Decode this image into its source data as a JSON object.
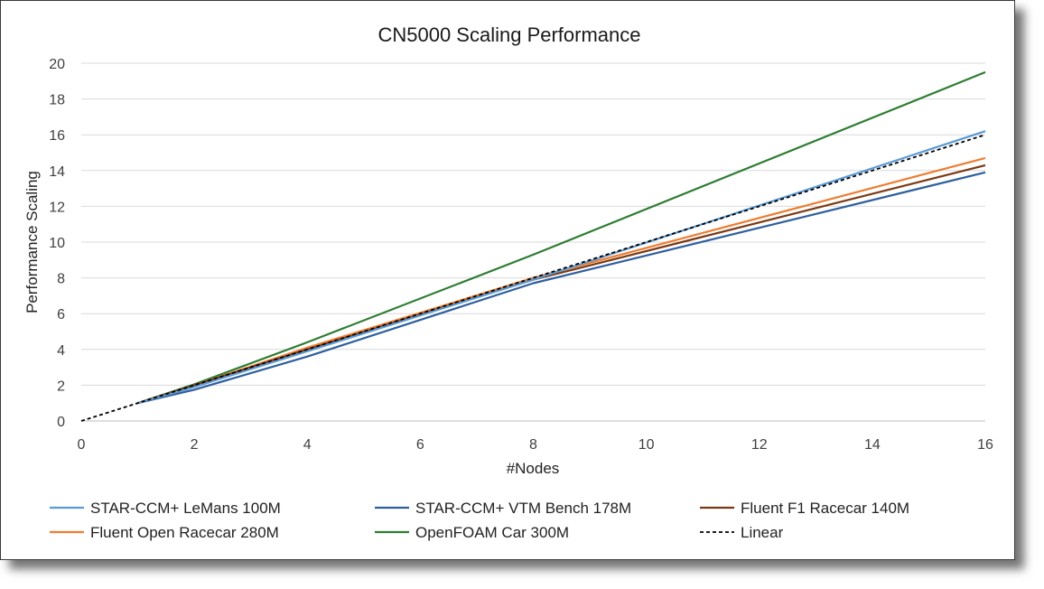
{
  "chart_data": {
    "type": "line",
    "title": "CN5000 Scaling Performance",
    "xlabel": "#Nodes",
    "ylabel": "Performance Scaling",
    "xlim": [
      0,
      16
    ],
    "ylim": [
      0,
      20
    ],
    "xticks": [
      "0",
      "2",
      "4",
      "6",
      "8",
      "10",
      "12",
      "14",
      "16"
    ],
    "yticks": [
      "0",
      "2",
      "4",
      "6",
      "8",
      "10",
      "12",
      "14",
      "16",
      "18",
      "20"
    ],
    "grid": "horizontal",
    "legend": "bottom",
    "series": [
      {
        "name": "STAR-CCM+ LeMans 100M",
        "color": "#5b9bd5",
        "dash": "solid",
        "x": [
          1,
          2,
          4,
          8,
          16
        ],
        "y": [
          1,
          1.9,
          3.9,
          7.9,
          16.2
        ]
      },
      {
        "name": "STAR-CCM+ VTM Bench 178M",
        "color": "#2e5f9e",
        "dash": "solid",
        "x": [
          1,
          2,
          4,
          8,
          16
        ],
        "y": [
          1,
          1.75,
          3.6,
          7.7,
          13.9
        ]
      },
      {
        "name": "Fluent F1 Racecar 140M",
        "color": "#7b3a14",
        "dash": "solid",
        "x": [
          1,
          2,
          4,
          8,
          16
        ],
        "y": [
          1,
          2.0,
          4.0,
          7.9,
          14.3
        ]
      },
      {
        "name": "Fluent Open Racecar 280M",
        "color": "#ed7d31",
        "dash": "solid",
        "x": [
          1,
          2,
          4,
          8,
          16
        ],
        "y": [
          1,
          2.0,
          4.1,
          8.0,
          14.7
        ]
      },
      {
        "name": "OpenFOAM Car 300M",
        "color": "#2e7d32",
        "dash": "solid",
        "x": [
          1,
          2,
          4,
          8,
          16
        ],
        "y": [
          1,
          2.05,
          4.4,
          9.3,
          19.5
        ]
      },
      {
        "name": "Linear",
        "color": "#000000",
        "dash": "dashed",
        "x": [
          0,
          16
        ],
        "y": [
          0,
          16
        ]
      }
    ]
  }
}
